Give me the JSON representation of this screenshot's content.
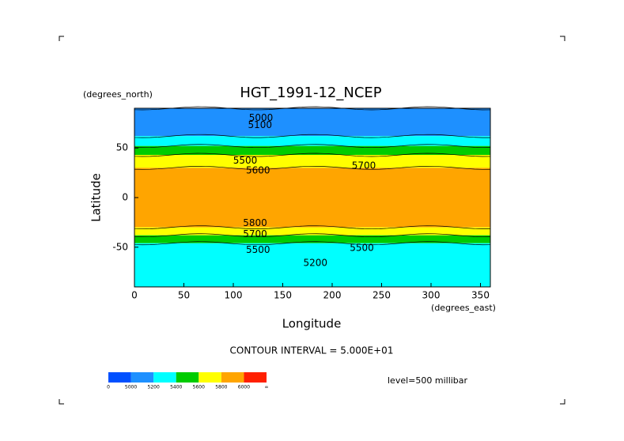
{
  "chart_data": {
    "type": "contour",
    "title": "HGT_1991-12_NCEP",
    "y_unit": "(degrees_north)",
    "x_unit": "(degrees_east)",
    "ylabel": "Latitude",
    "xlabel": "Longitude",
    "xlim": [
      0,
      360
    ],
    "ylim": [
      -90,
      90
    ],
    "xticks": [
      0,
      50,
      100,
      150,
      200,
      250,
      300,
      350
    ],
    "yticks": [
      -50,
      0,
      50
    ],
    "bands": [
      {
        "lat": [
          62,
          90
        ],
        "color": "#1e90ff"
      },
      {
        "lat": [
          52,
          62
        ],
        "color": "#00ffff"
      },
      {
        "lat": [
          43,
          52
        ],
        "color": "#00cc00"
      },
      {
        "lat": [
          30,
          43
        ],
        "color": "#ffff00"
      },
      {
        "lat": [
          -30,
          30
        ],
        "color": "#ffa500"
      },
      {
        "lat": [
          -38,
          -30
        ],
        "color": "#ffff00"
      },
      {
        "lat": [
          -46,
          -38
        ],
        "color": "#00cc00"
      },
      {
        "lat": [
          -90,
          -46
        ],
        "color": "#00ffff"
      }
    ],
    "contour_labels": [
      {
        "text": "5000",
        "lon": 128,
        "lat": 80
      },
      {
        "text": "5100",
        "lon": 127,
        "lat": 73
      },
      {
        "text": "5500",
        "lon": 112,
        "lat": 37
      },
      {
        "text": "5600",
        "lon": 125,
        "lat": 27
      },
      {
        "text": "5700",
        "lon": 232,
        "lat": 32
      },
      {
        "text": "5800",
        "lon": 122,
        "lat": -26
      },
      {
        "text": "5700",
        "lon": 122,
        "lat": -37
      },
      {
        "text": "5500",
        "lon": 125,
        "lat": -53
      },
      {
        "text": "5500",
        "lon": 230,
        "lat": -51
      },
      {
        "text": "5200",
        "lon": 183,
        "lat": -66
      }
    ],
    "contour_interval": "CONTOUR INTERVAL = 5.000E+01",
    "level": "level=500 millibar",
    "colorbar": {
      "colors": [
        "#0050ff",
        "#1e90ff",
        "#00ffff",
        "#00cc00",
        "#ffff00",
        "#ffa500",
        "#ff2000"
      ],
      "labels": [
        "0",
        "5000",
        "5200",
        "5400",
        "5600",
        "5800",
        "6000",
        "∞"
      ]
    }
  }
}
